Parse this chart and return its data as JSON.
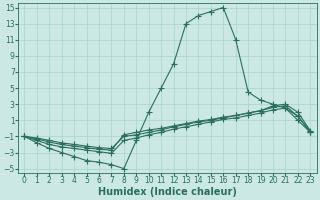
{
  "bg_color": "#cce8e4",
  "grid_color": "#a8d4ce",
  "line_color": "#2a6e60",
  "marker": "+",
  "markersize": 4,
  "linewidth": 0.8,
  "xlabel": "Humidex (Indice chaleur)",
  "xlabel_fontsize": 7,
  "tick_fontsize": 5.5,
  "xlim": [
    -0.5,
    23.5
  ],
  "ylim": [
    -5.5,
    15.5
  ],
  "yticks": [
    -5,
    -3,
    -1,
    1,
    3,
    5,
    7,
    9,
    11,
    13,
    15
  ],
  "xticks": [
    0,
    1,
    2,
    3,
    4,
    5,
    6,
    7,
    8,
    9,
    10,
    11,
    12,
    13,
    14,
    15,
    16,
    17,
    18,
    19,
    20,
    21,
    22,
    23
  ],
  "series": [
    {
      "x": [
        0,
        1,
        2,
        3,
        4,
        5,
        6,
        7,
        8,
        9,
        10,
        11,
        12,
        13,
        14,
        15,
        16,
        17,
        18,
        19,
        20,
        21,
        22,
        23
      ],
      "y": [
        -1.0,
        -1.8,
        -2.5,
        -3.0,
        -3.5,
        -4.0,
        -4.2,
        -4.5,
        -5.0,
        -1.5,
        2.0,
        5.0,
        8.0,
        13.0,
        14.0,
        14.5,
        15.0,
        11.0,
        4.5,
        3.5,
        3.0,
        2.5,
        1.5,
        -0.5
      ]
    },
    {
      "x": [
        0,
        1,
        2,
        3,
        4,
        5,
        6,
        7,
        8,
        9,
        10,
        11,
        12,
        13,
        14,
        15,
        16,
        17,
        18,
        19,
        20,
        21,
        22,
        23
      ],
      "y": [
        -1.0,
        -1.2,
        -1.5,
        -1.8,
        -2.0,
        -2.2,
        -2.4,
        -2.5,
        -1.0,
        -0.8,
        -0.5,
        -0.2,
        0.2,
        0.5,
        0.8,
        1.0,
        1.3,
        1.6,
        1.9,
        2.2,
        2.8,
        3.0,
        2.0,
        -0.3
      ]
    },
    {
      "x": [
        0,
        1,
        2,
        3,
        4,
        5,
        6,
        7,
        8,
        9,
        10,
        11,
        12,
        13,
        14,
        15,
        16,
        17,
        18,
        19,
        20,
        21,
        22,
        23
      ],
      "y": [
        -1.0,
        -1.3,
        -1.7,
        -2.0,
        -2.2,
        -2.4,
        -2.6,
        -2.7,
        -0.8,
        -0.5,
        -0.2,
        0.0,
        0.3,
        0.6,
        0.9,
        1.1,
        1.4,
        1.6,
        1.9,
        2.2,
        2.6,
        2.8,
        1.5,
        -0.4
      ]
    },
    {
      "x": [
        0,
        1,
        2,
        3,
        4,
        5,
        6,
        7,
        8,
        9,
        10,
        11,
        12,
        13,
        14,
        15,
        16,
        17,
        18,
        19,
        20,
        21,
        22,
        23
      ],
      "y": [
        -1.0,
        -1.5,
        -2.0,
        -2.3,
        -2.5,
        -2.7,
        -2.9,
        -3.1,
        -1.5,
        -1.2,
        -0.8,
        -0.5,
        -0.1,
        0.2,
        0.5,
        0.8,
        1.1,
        1.3,
        1.6,
        1.9,
        2.3,
        2.5,
        1.0,
        -0.5
      ]
    }
  ]
}
